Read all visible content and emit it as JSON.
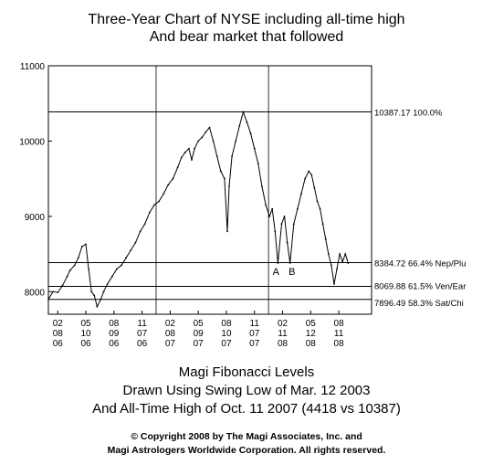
{
  "chart_data": {
    "type": "line",
    "title": "Three-Year Chart of NYSE including all-time high",
    "subtitle": "And bear market that followed",
    "caption": [
      "Magi Fibonacci Levels",
      "Drawn Using Swing Low of Mar. 12 2003",
      "And All-Time High of Oct. 11 2007 (4418 vs 10387)"
    ],
    "copyright": [
      "© Copyright 2008 by The Magi Associates, Inc. and",
      "Magi Astrologers Worldwide Corporation.  All rights reserved."
    ],
    "ylim": [
      7700,
      11000
    ],
    "yticks": [
      8000,
      9000,
      10000,
      11000
    ],
    "xlim": [
      0,
      34.5
    ],
    "xticks": [
      {
        "pos": 1,
        "label": [
          "02",
          "08",
          "06"
        ]
      },
      {
        "pos": 4,
        "label": [
          "05",
          "10",
          "06"
        ]
      },
      {
        "pos": 7,
        "label": [
          "08",
          "09",
          "06"
        ]
      },
      {
        "pos": 10,
        "label": [
          "11",
          "07",
          "06"
        ]
      },
      {
        "pos": 13,
        "label": [
          "02",
          "08",
          "07"
        ]
      },
      {
        "pos": 16,
        "label": [
          "05",
          "09",
          "07"
        ]
      },
      {
        "pos": 19,
        "label": [
          "08",
          "10",
          "07"
        ]
      },
      {
        "pos": 22,
        "label": [
          "11",
          "07",
          "07"
        ]
      },
      {
        "pos": 25,
        "label": [
          "02",
          "11",
          "08"
        ]
      },
      {
        "pos": 28,
        "label": [
          "05",
          "12",
          "08"
        ]
      },
      {
        "pos": 31,
        "label": [
          "08",
          "11",
          "08"
        ]
      }
    ],
    "year_dividers": [
      11.5,
      23.5
    ],
    "fib_levels": [
      {
        "value": 10387.17,
        "label": "10387.17   100.0%"
      },
      {
        "value": 8384.72,
        "label": "8384.72   66.4% Nep/Plu"
      },
      {
        "value": 8069.88,
        "label": "8069.88   61.5% Ven/Ear"
      },
      {
        "value": 7896.49,
        "label": "7896.49   58.3% Sat/Chi"
      }
    ],
    "annotations": [
      {
        "text": "A",
        "x": 24.3,
        "y": 8220
      },
      {
        "text": "B",
        "x": 26.0,
        "y": 8220
      }
    ],
    "series": [
      {
        "x": [
          0,
          0.5,
          1,
          1.5,
          2,
          2.3,
          2.8,
          3.2,
          3.6,
          4,
          4.3,
          4.6,
          4.9,
          5.2,
          5.6,
          5.9,
          6.3,
          6.8,
          7.3,
          7.8,
          8.3,
          8.8,
          9.3,
          9.8,
          10.3,
          10.8,
          11.3,
          11.8,
          12.3,
          12.8,
          13.3,
          13.8,
          14.2,
          14.6,
          15.0,
          15.3,
          15.6,
          16.0,
          16.4,
          16.8,
          17.2,
          17.6,
          18.0,
          18.4,
          18.8,
          19.1,
          19.3,
          19.6,
          20.0,
          20.4,
          20.8,
          21.2,
          21.6,
          22.0,
          22.4,
          22.8,
          23.2,
          23.6,
          23.9,
          24.2,
          24.5,
          24.9,
          25.2,
          25.5,
          25.8,
          26.2,
          26.6,
          27.0,
          27.4,
          27.8,
          28.1,
          28.4,
          28.7,
          29.0,
          29.3,
          29.6,
          29.9,
          30.2,
          30.5,
          30.8,
          31.1,
          31.4,
          31.7,
          32.0
        ],
        "values": [
          7900,
          8000,
          7990,
          8080,
          8200,
          8280,
          8350,
          8450,
          8600,
          8630,
          8300,
          8000,
          7950,
          7800,
          7900,
          8000,
          8100,
          8200,
          8300,
          8350,
          8450,
          8550,
          8650,
          8800,
          8900,
          9050,
          9150,
          9200,
          9300,
          9420,
          9500,
          9650,
          9780,
          9850,
          9900,
          9750,
          9900,
          10000,
          10050,
          10120,
          10180,
          10000,
          9800,
          9600,
          9500,
          8800,
          9400,
          9800,
          10000,
          10200,
          10387,
          10250,
          10100,
          9900,
          9700,
          9400,
          9150,
          9000,
          9100,
          8800,
          8380,
          8900,
          9000,
          8650,
          8380,
          8900,
          9100,
          9300,
          9500,
          9600,
          9550,
          9380,
          9200,
          9100,
          8900,
          8700,
          8500,
          8350,
          8100,
          8300,
          8500,
          8400,
          8500,
          8380
        ]
      }
    ]
  }
}
